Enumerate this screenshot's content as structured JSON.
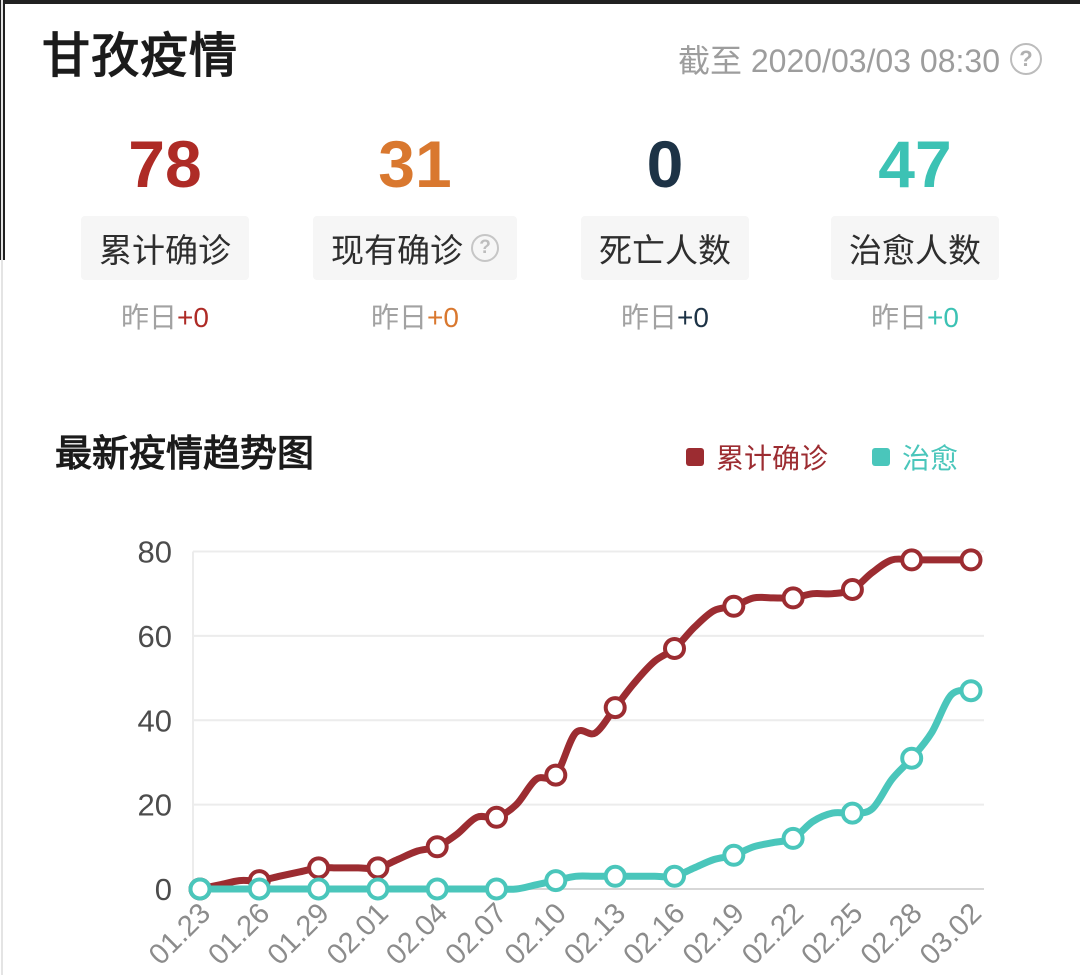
{
  "header": {
    "title": "甘孜疫情",
    "as_of": "截至 2020/03/03 08:30"
  },
  "icons": {
    "help": "?"
  },
  "stats": [
    {
      "value": "78",
      "label": "累计确诊",
      "delta_prefix": "昨日",
      "delta": "+0",
      "color": "#ae2b26",
      "has_help": false
    },
    {
      "value": "31",
      "label": "现有确诊",
      "delta_prefix": "昨日",
      "delta": "+0",
      "color": "#d9782f",
      "has_help": true
    },
    {
      "value": "0",
      "label": "死亡人数",
      "delta_prefix": "昨日",
      "delta": "+0",
      "color": "#1d3346",
      "has_help": false
    },
    {
      "value": "47",
      "label": "治愈人数",
      "delta_prefix": "昨日",
      "delta": "+0",
      "color": "#3cc2b4",
      "has_help": false
    }
  ],
  "trend": {
    "title": "最新疫情趋势图",
    "legend": [
      {
        "label": "累计确诊",
        "color": "#9c2c31"
      },
      {
        "label": "治愈",
        "color": "#4ac6bb"
      }
    ]
  },
  "chart_data": {
    "type": "line",
    "title": "最新疫情趋势图",
    "x": [
      "01.23",
      "01.24",
      "01.25",
      "01.26",
      "01.27",
      "01.28",
      "01.29",
      "01.30",
      "01.31",
      "02.01",
      "02.02",
      "02.03",
      "02.04",
      "02.05",
      "02.06",
      "02.07",
      "02.08",
      "02.09",
      "02.10",
      "02.11",
      "02.12",
      "02.13",
      "02.14",
      "02.15",
      "02.16",
      "02.17",
      "02.18",
      "02.19",
      "02.20",
      "02.21",
      "02.22",
      "02.23",
      "02.24",
      "02.25",
      "02.26",
      "02.27",
      "02.28",
      "02.29",
      "03.01",
      "03.02"
    ],
    "x_tick_labels": [
      "01.23",
      "01.26",
      "01.29",
      "02.01",
      "02.04",
      "02.07",
      "02.10",
      "02.13",
      "02.16",
      "02.19",
      "02.22",
      "02.25",
      "02.28",
      "03.02"
    ],
    "tick_every": 3,
    "marker_every": 3,
    "series": [
      {
        "name": "累计确诊",
        "color": "#9c2c31",
        "values": [
          0,
          1,
          2,
          2,
          3,
          4,
          5,
          5,
          5,
          5,
          7,
          9,
          10,
          13,
          17,
          17,
          20,
          26,
          27,
          37,
          37,
          43,
          49,
          54,
          57,
          62,
          66,
          67,
          69,
          69,
          69,
          70,
          70,
          71,
          75,
          78,
          78,
          78,
          78,
          78
        ]
      },
      {
        "name": "治愈",
        "color": "#4ac6bb",
        "values": [
          0,
          0,
          0,
          0,
          0,
          0,
          0,
          0,
          0,
          0,
          0,
          0,
          0,
          0,
          0,
          0,
          0,
          1,
          2,
          3,
          3,
          3,
          3,
          3,
          3,
          5,
          7,
          8,
          10,
          11,
          12,
          16,
          18,
          18,
          19,
          26,
          31,
          37,
          46,
          47
        ]
      }
    ],
    "ylim": [
      0,
      80
    ],
    "y_ticks": [
      0,
      20,
      40,
      60,
      80
    ],
    "grid": true,
    "smooth": true,
    "legend_position": "top-right",
    "marker_fill": "#ffffff",
    "grid_color": "#ececec",
    "baseline_color": "#d7d7d7"
  }
}
